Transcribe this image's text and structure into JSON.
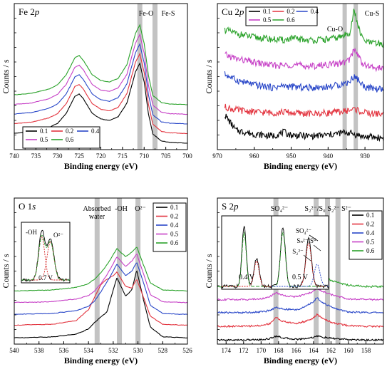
{
  "figure": {
    "panels": [
      {
        "id": "fe2p",
        "title_main": "Fe 2",
        "title_italic": "p",
        "xlabel": "Binding energy (eV)",
        "ylabel": "Counts / s",
        "xticks": [
          "740",
          "735",
          "730",
          "725",
          "720",
          "715",
          "710",
          "705",
          "700"
        ],
        "band_labels": [
          "Fe-O",
          "Fe-S"
        ],
        "legend": [
          "0.1",
          "0.2",
          "0.4",
          "0.5",
          "0.6"
        ]
      },
      {
        "id": "cu2p",
        "title_main": "Cu 2",
        "title_italic": "p",
        "xlabel": "Binding energy (eV)",
        "ylabel": "Counts / s",
        "xticks": [
          "970",
          "960",
          "950",
          "940",
          "930"
        ],
        "band_labels": [
          "Cu-O",
          "Cu-S"
        ],
        "legend": [
          "0.1",
          "0.2",
          "0.4",
          "0.5",
          "0.6"
        ]
      },
      {
        "id": "o1s",
        "title_main": "O 1",
        "title_italic": "s",
        "xlabel": "Binding energy (eV)",
        "ylabel": "Counts / s",
        "xticks": [
          "540",
          "538",
          "536",
          "534",
          "532",
          "530",
          "528",
          "526"
        ],
        "band_labels": [
          "Absorbed",
          "water",
          "-OH",
          "O²⁻"
        ],
        "legend": [
          "0.1",
          "0.2",
          "0.4",
          "0.5",
          "0.6"
        ],
        "inset_labels": [
          "-OH",
          "O²⁻",
          "0.7 V"
        ]
      },
      {
        "id": "s2p",
        "title_main": "S 2",
        "title_italic": "p",
        "xlabel": "Binding energy (eV)",
        "ylabel": "Counts / s",
        "xticks": [
          "174",
          "172",
          "170",
          "168",
          "166",
          "164",
          "162",
          "160",
          "158"
        ],
        "band_labels": [
          "SO₄²⁻",
          "S₂²⁻/S₀",
          "S₂²⁻",
          "S²⁻"
        ],
        "legend": [
          "0.1",
          "0.2",
          "0.4",
          "0.5",
          "0.6"
        ],
        "inset_labels": [
          "0.4 V",
          "0.5 V",
          "SO₄²⁻",
          "Sₙ²⁻/S⁰",
          "S₂²⁻"
        ]
      }
    ]
  },
  "chart_data": [
    {
      "type": "line",
      "title": "Fe 2p",
      "xlabel": "Binding energy (eV)",
      "ylabel": "Counts / s",
      "xlim": [
        740,
        700
      ],
      "x_reversed": true,
      "yticks_labels": "none",
      "shaded_bands_ev": [
        {
          "label": "Fe-O",
          "center": 711
        },
        {
          "label": "Fe-S",
          "center": 707.5
        }
      ],
      "legend_position": "bottom-left",
      "x": [
        740,
        736,
        732,
        730,
        728,
        726,
        725,
        724,
        722,
        720,
        718,
        716,
        714,
        712,
        711,
        710,
        709,
        708,
        706,
        704,
        700
      ],
      "series": [
        {
          "name": "0.1",
          "color": "#000000",
          "values": [
            1.8,
            2.0,
            2.6,
            3.2,
            4.6,
            7.0,
            7.3,
            6.6,
            4.6,
            3.8,
            3.6,
            4.1,
            6.0,
            10.4,
            11.6,
            9.0,
            4.5,
            1.7,
            0.7,
            0.5,
            0.4
          ]
        },
        {
          "name": "0.2",
          "color": "#e3343f",
          "values": [
            1.8,
            2.0,
            2.6,
            3.2,
            4.6,
            7.0,
            7.3,
            6.6,
            4.6,
            3.8,
            3.6,
            4.1,
            6.0,
            10.4,
            11.6,
            9.0,
            4.5,
            1.7,
            0.7,
            0.5,
            0.4
          ]
        },
        {
          "name": "0.4",
          "color": "#2846c8",
          "values": [
            1.8,
            2.0,
            2.6,
            3.2,
            4.6,
            7.0,
            7.3,
            6.6,
            4.6,
            3.8,
            3.6,
            4.1,
            6.0,
            10.4,
            11.6,
            9.0,
            4.5,
            1.7,
            0.7,
            0.5,
            0.4
          ]
        },
        {
          "name": "0.5",
          "color": "#c63fc6",
          "values": [
            1.8,
            2.0,
            2.6,
            3.2,
            4.6,
            7.0,
            7.3,
            6.6,
            4.6,
            3.8,
            3.6,
            4.1,
            6.0,
            10.4,
            11.6,
            9.0,
            4.5,
            1.7,
            0.7,
            0.5,
            0.4
          ]
        },
        {
          "name": "0.6",
          "color": "#2aa22a",
          "values": [
            1.8,
            2.0,
            2.6,
            3.2,
            4.6,
            7.0,
            7.3,
            6.6,
            4.6,
            3.8,
            3.6,
            4.1,
            6.0,
            10.4,
            11.6,
            9.0,
            4.5,
            1.7,
            0.7,
            0.5,
            0.4
          ]
        }
      ],
      "offsets": [
        0,
        1.35,
        2.7,
        4.05,
        5.4
      ]
    },
    {
      "type": "line",
      "title": "Cu 2p",
      "xlabel": "Binding energy (eV)",
      "ylabel": "Counts / s",
      "xlim": [
        970,
        925
      ],
      "x_reversed": true,
      "yticks_labels": "none",
      "shaded_bands_ev": [
        {
          "label": "Cu-O",
          "center": 935.5
        },
        {
          "label": "Cu-S",
          "center": 932.5
        }
      ],
      "legend_position": "top-left",
      "x": [
        968,
        965,
        960,
        955,
        952,
        950,
        945,
        940,
        937,
        935,
        934,
        933,
        932,
        931,
        930,
        928,
        925
      ],
      "series": [
        {
          "name": "0.1",
          "color": "#000000",
          "values": [
            3.0,
            1.4,
            1.0,
            0.8,
            1.2,
            0.9,
            0.8,
            0.9,
            1.1,
            1.2,
            1.1,
            1.0,
            0.9,
            0.8,
            0.7,
            0.7,
            0.6
          ]
        },
        {
          "name": "0.2",
          "color": "#e3343f",
          "values": [
            1.6,
            1.3,
            1.1,
            1.0,
            1.1,
            1.0,
            0.9,
            1.0,
            1.1,
            1.2,
            1.3,
            1.4,
            1.3,
            1.1,
            1.0,
            0.9,
            0.9
          ]
        },
        {
          "name": "0.4",
          "color": "#2846c8",
          "values": [
            2.8,
            2.2,
            1.7,
            1.4,
            1.6,
            1.5,
            1.4,
            1.5,
            1.7,
            1.9,
            2.1,
            2.6,
            2.3,
            1.8,
            1.5,
            1.3,
            1.2
          ]
        },
        {
          "name": "0.5",
          "color": "#c63fc6",
          "values": [
            2.6,
            2.2,
            1.8,
            1.5,
            1.5,
            1.6,
            1.4,
            1.6,
            1.7,
            1.9,
            2.2,
            3.2,
            2.7,
            1.9,
            1.5,
            1.3,
            1.2
          ]
        },
        {
          "name": "0.6",
          "color": "#2aa22a",
          "values": [
            3.0,
            2.6,
            2.2,
            2.0,
            1.9,
            2.1,
            1.9,
            2.0,
            2.2,
            2.5,
            2.8,
            5.0,
            3.6,
            2.3,
            1.8,
            1.6,
            1.5
          ]
        }
      ],
      "offsets": [
        0,
        2.2,
        4.4,
        6.6,
        8.8
      ]
    },
    {
      "type": "line",
      "title": "O 1s",
      "xlabel": "Binding energy (eV)",
      "ylabel": "Counts / s",
      "xlim": [
        540,
        526
      ],
      "x_reversed": true,
      "yticks_labels": "none",
      "shaded_bands_ev": [
        {
          "label": "Absorbed water",
          "center": 533.3
        },
        {
          "label": "-OH",
          "center": 531.5
        },
        {
          "label": "O2-",
          "center": 530.0
        }
      ],
      "legend_position": "top-right",
      "x": [
        540,
        537,
        535,
        534,
        533.5,
        533,
        532.5,
        532,
        531.7,
        531,
        530.5,
        530.1,
        529.5,
        529,
        528,
        526
      ],
      "series": [
        {
          "name": "0.1",
          "color": "#000000",
          "values": [
            0.3,
            0.4,
            0.7,
            1.3,
            2.0,
            2.6,
            3.2,
            5.6,
            7.0,
            4.9,
            5.6,
            7.8,
            4.2,
            1.5,
            0.4,
            0.3
          ]
        },
        {
          "name": "0.2",
          "color": "#e3343f",
          "values": [
            0.3,
            0.4,
            0.8,
            2.0,
            3.4,
            4.8,
            5.4,
            5.8,
            6.2,
            4.6,
            4.4,
            5.4,
            3.2,
            1.3,
            0.4,
            0.3
          ]
        },
        {
          "name": "0.4",
          "color": "#2846c8",
          "values": [
            0.3,
            0.4,
            0.7,
            1.2,
            1.8,
            2.8,
            3.9,
            5.1,
            5.9,
            4.6,
            5.1,
            6.1,
            3.6,
            1.3,
            0.4,
            0.3
          ]
        },
        {
          "name": "0.5",
          "color": "#c63fc6",
          "values": [
            0.3,
            0.4,
            0.7,
            1.1,
            1.6,
            2.4,
            3.4,
            4.6,
            5.4,
            4.3,
            4.9,
            5.7,
            3.3,
            1.2,
            0.4,
            0.3
          ]
        },
        {
          "name": "0.6",
          "color": "#2aa22a",
          "values": [
            0.3,
            0.4,
            0.7,
            1.1,
            1.6,
            2.3,
            3.2,
            4.3,
            5.0,
            4.1,
            4.6,
            5.2,
            3.0,
            1.2,
            0.4,
            0.3
          ]
        }
      ],
      "offsets": [
        0,
        1.4,
        2.6,
        3.9,
        5.2
      ]
    },
    {
      "type": "line",
      "title": "S 2p",
      "xlabel": "Binding energy (eV)",
      "ylabel": "Counts / s",
      "xlim": [
        175,
        156
      ],
      "x_reversed": true,
      "yticks_labels": "none",
      "shaded_bands_ev": [
        {
          "label": "SO4 2-",
          "center": 168.3
        },
        {
          "label": "S2 2-/S0",
          "center": 163.7
        },
        {
          "label": "S2 2-",
          "center": 162.4
        },
        {
          "label": "S2-",
          "center": 161.2
        }
      ],
      "legend_position": "top-right",
      "x": [
        175,
        172,
        170,
        169,
        168.3,
        167.5,
        166,
        165,
        164,
        163.6,
        163,
        162,
        161,
        160,
        158,
        156
      ],
      "series": [
        {
          "name": "0.1",
          "color": "#000000",
          "values": [
            0.3,
            0.3,
            0.35,
            0.5,
            0.9,
            0.6,
            0.4,
            0.5,
            0.7,
            0.9,
            0.7,
            0.55,
            0.45,
            0.35,
            0.3,
            0.3
          ]
        },
        {
          "name": "0.2",
          "color": "#e3343f",
          "values": [
            0.4,
            0.4,
            0.5,
            0.8,
            1.7,
            1.1,
            0.8,
            1.1,
            1.6,
            2.1,
            1.6,
            1.0,
            0.7,
            0.5,
            0.4,
            0.4
          ]
        },
        {
          "name": "0.4",
          "color": "#2846c8",
          "values": [
            0.4,
            0.4,
            0.5,
            0.7,
            1.2,
            0.9,
            0.8,
            1.2,
            2.0,
            2.6,
            1.9,
            1.2,
            0.8,
            0.5,
            0.4,
            0.4
          ]
        },
        {
          "name": "0.5",
          "color": "#c63fc6",
          "values": [
            0.4,
            0.4,
            0.5,
            0.8,
            1.4,
            1.0,
            0.8,
            1.1,
            1.6,
            2.0,
            1.6,
            1.1,
            0.8,
            0.5,
            0.4,
            0.4
          ]
        },
        {
          "name": "0.6",
          "color": "#2aa22a",
          "values": [
            0.4,
            0.4,
            0.6,
            1.0,
            1.8,
            1.2,
            0.9,
            1.2,
            1.9,
            2.4,
            1.9,
            1.3,
            0.9,
            0.6,
            0.4,
            0.4
          ]
        }
      ],
      "offsets": [
        0,
        1.9,
        3.9,
        5.8,
        7.7
      ]
    }
  ]
}
